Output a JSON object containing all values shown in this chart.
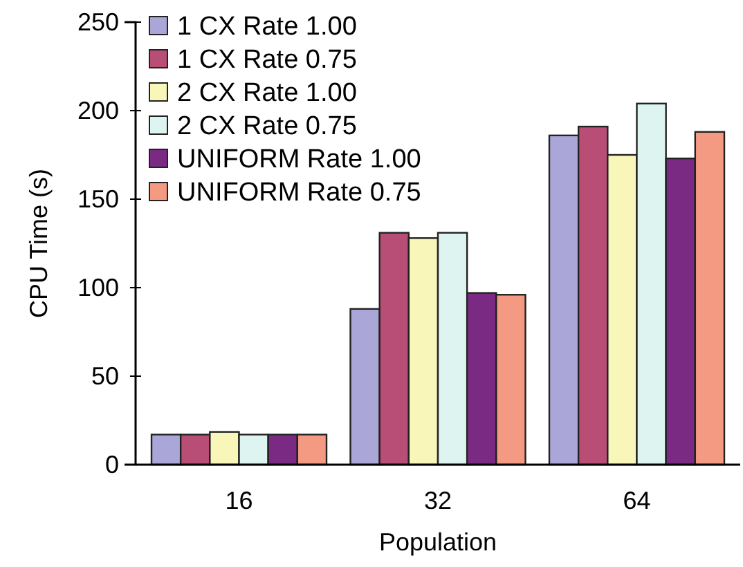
{
  "chart_data": {
    "type": "bar",
    "xlabel": "Population",
    "ylabel": "CPU Time (s)",
    "categories": [
      "16",
      "32",
      "64"
    ],
    "series": [
      {
        "name": "1 CX Rate 1.00",
        "color": "#aaa6d8",
        "values": [
          17,
          88,
          186
        ]
      },
      {
        "name": "1 CX Rate 0.75",
        "color": "#b84e75",
        "values": [
          17,
          131,
          191
        ]
      },
      {
        "name": "2 CX Rate 1.00",
        "color": "#f8f6b8",
        "values": [
          18.5,
          128,
          175
        ]
      },
      {
        "name": "2 CX Rate 0.75",
        "color": "#def4f0",
        "values": [
          17,
          131,
          204
        ]
      },
      {
        "name": "UNIFORM Rate 1.00",
        "color": "#7a2a82",
        "values": [
          17,
          97,
          173
        ]
      },
      {
        "name": "UNIFORM Rate 0.75",
        "color": "#f59a82",
        "values": [
          17,
          96,
          188
        ]
      }
    ],
    "ylim": [
      0,
      250
    ],
    "yticks": [
      0,
      50,
      100,
      150,
      200,
      250
    ],
    "legend": "top left",
    "grid": false
  }
}
